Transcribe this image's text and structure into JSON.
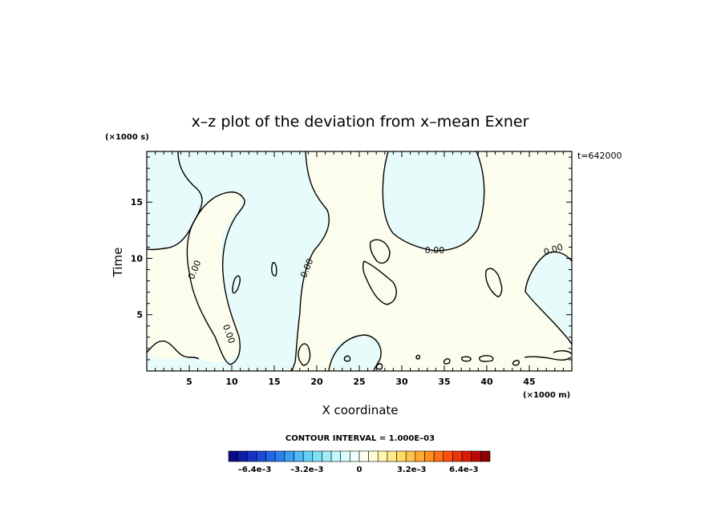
{
  "chart_data": {
    "type": "contour",
    "title": "x–z plot of the deviation from x–mean Exner",
    "xlabel": "X coordinate",
    "ylabel": "Time",
    "x_unit": "(×1000 m)",
    "y_unit": "(×1000 s)",
    "time_label": "t=642000",
    "xlim": [
      0,
      50
    ],
    "ylim": [
      0,
      19.5
    ],
    "x_ticks": [
      "5",
      "10",
      "15",
      "20",
      "25",
      "30",
      "35",
      "40",
      "45"
    ],
    "y_ticks": [
      "5",
      "10",
      "15"
    ],
    "contour_level_label": "0.00",
    "contour_interval_text": "CONTOUR INTERVAL = 1.000E–03",
    "colorbar": {
      "labels": [
        "–6.4e–3",
        "–3.2e–3",
        "0",
        "3.2e–3",
        "6.4e–3"
      ],
      "min": -0.008,
      "max": 0.008,
      "colors_negative": [
        "#0a0a8a",
        "#0f1ea8",
        "#1433c4",
        "#1a4bd9",
        "#2266e6",
        "#2b82ee",
        "#3a9ef3",
        "#4fb8f5",
        "#66cff6",
        "#80e0f6",
        "#9deef8",
        "#bff7fa",
        "#dcfcfc",
        "#f0ffff"
      ],
      "colors_positive": [
        "#fffff0",
        "#fffcd8",
        "#fff6b0",
        "#ffea8a",
        "#ffd966",
        "#ffc34a",
        "#ffaa33",
        "#ff8f22",
        "#ff7015",
        "#f9500d",
        "#ee3308",
        "#d91a05",
        "#bb0a03",
        "#8b0000"
      ]
    },
    "fill_colors": {
      "negative": "#e8fbfb",
      "positive": "#fdfdee"
    }
  }
}
